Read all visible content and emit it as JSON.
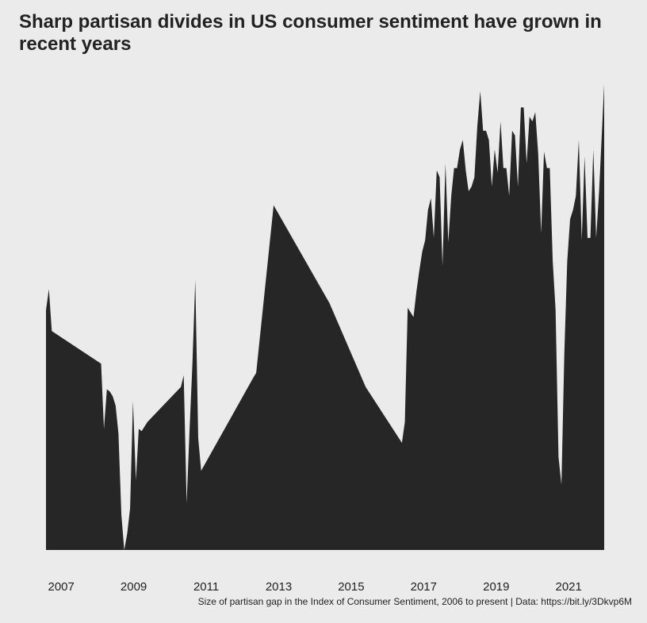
{
  "chart_data": {
    "type": "area",
    "title": "Sharp partisan divides in US consumer sentiment have grown in recent years",
    "caption": "Size of partisan gap in the Index of Consumer Sentiment, 2006 to present | Data: https://bit.ly/3Dkvp6M",
    "xlabel": "",
    "ylabel": "",
    "x_ticks": [
      2007,
      2009,
      2011,
      2013,
      2015,
      2017,
      2019,
      2021
    ],
    "x_tick_labels": [
      "2007",
      "2009",
      "2011",
      "2013",
      "2015",
      "2017",
      "2019",
      "2021"
    ],
    "xlim": [
      2006.58,
      2021.98
    ],
    "ylim": [
      0,
      100
    ],
    "grid": false,
    "color": "#262626",
    "series": [
      {
        "x": [
          2006.58,
          2006.58,
          2006.66,
          2006.74,
          2008.1,
          2008.18,
          2008.26,
          2008.34,
          2008.42,
          2008.5,
          2008.58,
          2008.66,
          2008.74,
          2008.82,
          2008.9,
          2008.98,
          2009.06,
          2009.14,
          2009.22,
          2009.3,
          2009.38,
          2010.3,
          2010.38,
          2010.46,
          2010.54,
          2010.62,
          2010.7,
          2010.78,
          2010.86,
          2012.3,
          2012.38,
          2012.86,
          2014.4,
          2015.4,
          2016.4,
          2016.48,
          2016.56,
          2016.72,
          2016.8,
          2016.88,
          2016.96,
          2017.04,
          2017.12,
          2017.2,
          2017.28,
          2017.36,
          2017.44,
          2017.52,
          2017.6,
          2017.68,
          2017.76,
          2017.84,
          2017.92,
          2018.0,
          2018.08,
          2018.16,
          2018.24,
          2018.32,
          2018.4,
          2018.48,
          2018.56,
          2018.64,
          2018.72,
          2018.8,
          2018.88,
          2018.96,
          2019.04,
          2019.12,
          2019.2,
          2019.28,
          2019.36,
          2019.44,
          2019.52,
          2019.6,
          2019.68,
          2019.76,
          2019.84,
          2019.92,
          2020.0,
          2020.08,
          2020.16,
          2020.24,
          2020.32,
          2020.4,
          2020.48,
          2020.56,
          2020.64,
          2020.72,
          2020.8,
          2020.88,
          2020.96,
          2021.04,
          2021.12,
          2021.2,
          2021.28,
          2021.36,
          2021.44,
          2021.52,
          2021.6,
          2021.68,
          2021.76,
          2021.84,
          2021.98,
          2021.98
        ],
        "values": [
          0,
          51.5,
          56.0,
          47.0,
          40.0,
          26.0,
          34.5,
          34.0,
          33.0,
          31.0,
          25.0,
          7.5,
          0.0,
          3.5,
          9.0,
          32.0,
          15.0,
          26.0,
          25.5,
          26.5,
          27.5,
          35.0,
          37.5,
          10.0,
          25.5,
          40.0,
          58.0,
          24.0,
          17.0,
          37.0,
          38.0,
          74.0,
          53.0,
          35.0,
          23.0,
          27.5,
          52.0,
          50.0,
          55.5,
          60.0,
          64.0,
          66.5,
          73.0,
          75.5,
          67.0,
          81.5,
          80.0,
          61.0,
          83.0,
          66.0,
          76.0,
          82.0,
          82.0,
          86.0,
          88.0,
          81.5,
          77.0,
          78.0,
          80.0,
          91.0,
          98.5,
          90.0,
          90.0,
          88.0,
          78.0,
          86.0,
          81.0,
          92.0,
          82.0,
          82.0,
          76.0,
          90.0,
          89.0,
          78.0,
          95.0,
          95.0,
          83.0,
          93.0,
          92.0,
          94.0,
          85.0,
          68.0,
          85.5,
          82.0,
          82.0,
          62.0,
          51.5,
          20.0,
          14.0,
          42.0,
          62.0,
          71.0,
          73.0,
          76.0,
          88.0,
          66.5,
          84.5,
          67.0,
          67.0,
          86.0,
          67.0,
          77.0,
          100.0,
          0
        ]
      }
    ]
  }
}
